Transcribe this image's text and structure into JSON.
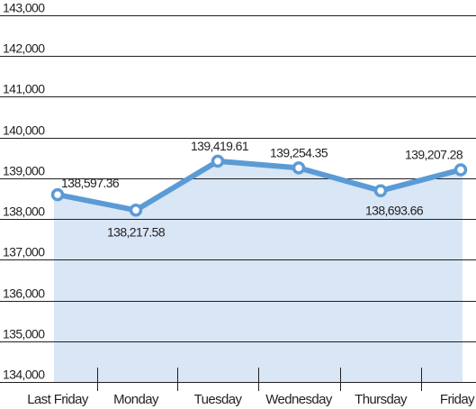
{
  "chart_data": {
    "type": "area",
    "title": "",
    "xlabel": "",
    "ylabel": "",
    "categories": [
      "Last Friday",
      "Monday",
      "Tuesday",
      "Wednesday",
      "Thursday",
      "Friday"
    ],
    "values": [
      138597.36,
      138217.58,
      139419.61,
      139254.35,
      138693.66,
      139207.28
    ],
    "value_labels": [
      "138,597.36",
      "138,217.58",
      "139,419.61",
      "139,254.35",
      "138,693.66",
      "139,207.28"
    ],
    "ylim": [
      134000,
      143000
    ],
    "yticks": [
      134000,
      135000,
      136000,
      137000,
      138000,
      139000,
      140000,
      141000,
      142000,
      143000
    ],
    "ytick_labels": [
      "134,000",
      "135,000",
      "136,000",
      "137,000",
      "138,000",
      "139,000",
      "140,000",
      "141,000",
      "142,000",
      "143,000"
    ],
    "grid": true,
    "colors": {
      "line": "#5b9bd5",
      "fill": "#d9e6f5",
      "marker_fill": "#ffffff",
      "grid": "#231f20",
      "text": "#231f20"
    }
  }
}
